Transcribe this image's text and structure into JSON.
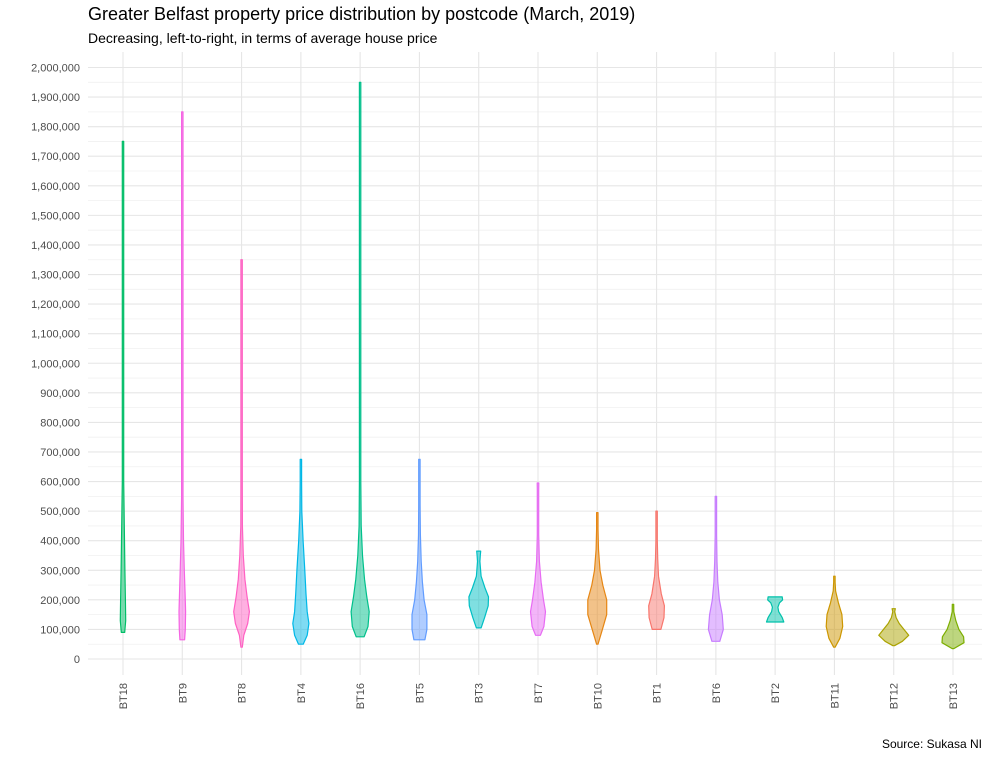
{
  "chart_data": {
    "type": "violin",
    "title": "Greater Belfast property price distribution by postcode (March, 2019)",
    "subtitle": "Decreasing, left-to-right, in terms of average house price",
    "caption": "Source: Sukasa NI",
    "xlabel": "",
    "ylabel": "",
    "ylim": [
      0,
      2000000
    ],
    "y_ticks": [
      0,
      100000,
      200000,
      300000,
      400000,
      500000,
      600000,
      700000,
      800000,
      900000,
      1000000,
      1100000,
      1200000,
      1300000,
      1400000,
      1500000,
      1600000,
      1700000,
      1800000,
      1900000,
      2000000
    ],
    "y_tick_labels": [
      "0",
      "100,000",
      "200,000",
      "300,000",
      "400,000",
      "500,000",
      "600,000",
      "700,000",
      "800,000",
      "900,000",
      "1,000,000",
      "1,100,000",
      "1,200,000",
      "1,300,000",
      "1,400,000",
      "1,500,000",
      "1,600,000",
      "1,700,000",
      "1,800,000",
      "1,900,000",
      "2,000,000"
    ],
    "grid": true,
    "legend": "none",
    "categories": [
      "BT18",
      "BT9",
      "BT8",
      "BT4",
      "BT16",
      "BT5",
      "BT3",
      "BT7",
      "BT10",
      "BT1",
      "BT6",
      "BT2",
      "BT11",
      "BT12",
      "BT13"
    ],
    "series": [
      {
        "category": "BT18",
        "color": "#00BE67",
        "min": 90000,
        "max": 1750000,
        "density": [
          [
            90000,
            0.22
          ],
          [
            130000,
            0.34
          ],
          [
            200000,
            0.3
          ],
          [
            300000,
            0.24
          ],
          [
            450000,
            0.16
          ],
          [
            600000,
            0.09
          ],
          [
            800000,
            0.05
          ],
          [
            1000000,
            0.03
          ],
          [
            1300000,
            0.02
          ],
          [
            1750000,
            0.02
          ]
        ]
      },
      {
        "category": "BT9",
        "color": "#F564E3",
        "min": 65000,
        "max": 1850000,
        "density": [
          [
            65000,
            0.3
          ],
          [
            100000,
            0.38
          ],
          [
            160000,
            0.42
          ],
          [
            220000,
            0.36
          ],
          [
            300000,
            0.26
          ],
          [
            400000,
            0.16
          ],
          [
            550000,
            0.09
          ],
          [
            800000,
            0.05
          ],
          [
            1200000,
            0.03
          ],
          [
            1850000,
            0.02
          ]
        ]
      },
      {
        "category": "BT8",
        "color": "#FF61C3",
        "min": 40000,
        "max": 1350000,
        "density": [
          [
            40000,
            0.04
          ],
          [
            80000,
            0.28
          ],
          [
            120000,
            0.78
          ],
          [
            160000,
            1.0
          ],
          [
            210000,
            0.7
          ],
          [
            270000,
            0.42
          ],
          [
            350000,
            0.22
          ],
          [
            450000,
            0.1
          ],
          [
            600000,
            0.05
          ],
          [
            1350000,
            0.02
          ]
        ]
      },
      {
        "category": "BT4",
        "color": "#00B8E7",
        "min": 50000,
        "max": 675000,
        "density": [
          [
            50000,
            0.3
          ],
          [
            80000,
            0.8
          ],
          [
            120000,
            1.02
          ],
          [
            160000,
            0.8
          ],
          [
            220000,
            0.65
          ],
          [
            300000,
            0.5
          ],
          [
            400000,
            0.28
          ],
          [
            500000,
            0.12
          ],
          [
            600000,
            0.04
          ],
          [
            675000,
            0.03
          ]
        ]
      },
      {
        "category": "BT16",
        "color": "#00C08B",
        "min": 75000,
        "max": 1950000,
        "density": [
          [
            75000,
            0.5
          ],
          [
            110000,
            1.0
          ],
          [
            160000,
            1.15
          ],
          [
            210000,
            0.85
          ],
          [
            270000,
            0.55
          ],
          [
            350000,
            0.3
          ],
          [
            450000,
            0.13
          ],
          [
            600000,
            0.06
          ],
          [
            900000,
            0.03
          ],
          [
            1950000,
            0.02
          ]
        ]
      },
      {
        "category": "BT5",
        "color": "#619CFF",
        "min": 65000,
        "max": 675000,
        "density": [
          [
            65000,
            0.7
          ],
          [
            100000,
            0.95
          ],
          [
            150000,
            0.95
          ],
          [
            200000,
            0.6
          ],
          [
            260000,
            0.38
          ],
          [
            330000,
            0.22
          ],
          [
            420000,
            0.12
          ],
          [
            520000,
            0.06
          ],
          [
            675000,
            0.03
          ]
        ]
      },
      {
        "category": "BT3",
        "color": "#00BFC4",
        "min": 105000,
        "max": 365000,
        "density": [
          [
            105000,
            0.3
          ],
          [
            140000,
            0.75
          ],
          [
            180000,
            1.2
          ],
          [
            210000,
            1.25
          ],
          [
            240000,
            0.8
          ],
          [
            280000,
            0.3
          ],
          [
            330000,
            0.15
          ],
          [
            350000,
            0.2
          ],
          [
            365000,
            0.25
          ]
        ]
      },
      {
        "category": "BT7",
        "color": "#E76BF3",
        "min": 80000,
        "max": 595000,
        "density": [
          [
            80000,
            0.3
          ],
          [
            110000,
            0.75
          ],
          [
            160000,
            0.95
          ],
          [
            200000,
            0.7
          ],
          [
            260000,
            0.4
          ],
          [
            330000,
            0.18
          ],
          [
            420000,
            0.08
          ],
          [
            520000,
            0.05
          ],
          [
            570000,
            0.03
          ],
          [
            595000,
            0.1
          ]
        ]
      },
      {
        "category": "BT10",
        "color": "#E68613",
        "min": 50000,
        "max": 495000,
        "density": [
          [
            50000,
            0.05
          ],
          [
            100000,
            0.65
          ],
          [
            150000,
            1.2
          ],
          [
            200000,
            1.2
          ],
          [
            250000,
            0.7
          ],
          [
            300000,
            0.35
          ],
          [
            370000,
            0.15
          ],
          [
            440000,
            0.06
          ],
          [
            495000,
            0.03
          ]
        ]
      },
      {
        "category": "BT1",
        "color": "#F8766D",
        "min": 100000,
        "max": 500000,
        "density": [
          [
            100000,
            0.55
          ],
          [
            140000,
            0.95
          ],
          [
            180000,
            1.0
          ],
          [
            220000,
            0.6
          ],
          [
            280000,
            0.25
          ],
          [
            340000,
            0.14
          ],
          [
            400000,
            0.07
          ],
          [
            460000,
            0.05
          ],
          [
            500000,
            0.05
          ]
        ]
      },
      {
        "category": "BT6",
        "color": "#C77CFF",
        "min": 60000,
        "max": 550000,
        "density": [
          [
            60000,
            0.5
          ],
          [
            100000,
            0.95
          ],
          [
            150000,
            0.8
          ],
          [
            200000,
            0.45
          ],
          [
            260000,
            0.25
          ],
          [
            330000,
            0.15
          ],
          [
            420000,
            0.07
          ],
          [
            500000,
            0.04
          ],
          [
            550000,
            0.03
          ]
        ]
      },
      {
        "category": "BT2",
        "color": "#00C1AA",
        "min": 125000,
        "max": 210000,
        "density": [
          [
            125000,
            1.1
          ],
          [
            140000,
            0.9
          ],
          [
            160000,
            0.45
          ],
          [
            175000,
            0.35
          ],
          [
            190000,
            0.55
          ],
          [
            200000,
            0.95
          ],
          [
            210000,
            0.9
          ]
        ]
      },
      {
        "category": "BT11",
        "color": "#CD9600",
        "min": 40000,
        "max": 280000,
        "density": [
          [
            40000,
            0.05
          ],
          [
            70000,
            0.7
          ],
          [
            110000,
            1.05
          ],
          [
            150000,
            0.95
          ],
          [
            190000,
            0.5
          ],
          [
            230000,
            0.15
          ],
          [
            260000,
            0.06
          ],
          [
            280000,
            0.05
          ]
        ]
      },
      {
        "category": "BT12",
        "color": "#ABA300",
        "min": 45000,
        "max": 170000,
        "density": [
          [
            45000,
            0.1
          ],
          [
            60000,
            1.1
          ],
          [
            80000,
            1.9
          ],
          [
            100000,
            1.3
          ],
          [
            120000,
            0.7
          ],
          [
            140000,
            0.3
          ],
          [
            160000,
            0.12
          ],
          [
            170000,
            0.2
          ]
        ]
      },
      {
        "category": "BT13",
        "color": "#7CAE00",
        "min": 35000,
        "max": 185000,
        "density": [
          [
            35000,
            0.1
          ],
          [
            55000,
            1.4
          ],
          [
            75000,
            1.35
          ],
          [
            100000,
            0.75
          ],
          [
            130000,
            0.35
          ],
          [
            160000,
            0.1
          ],
          [
            185000,
            0.05
          ]
        ]
      }
    ]
  }
}
